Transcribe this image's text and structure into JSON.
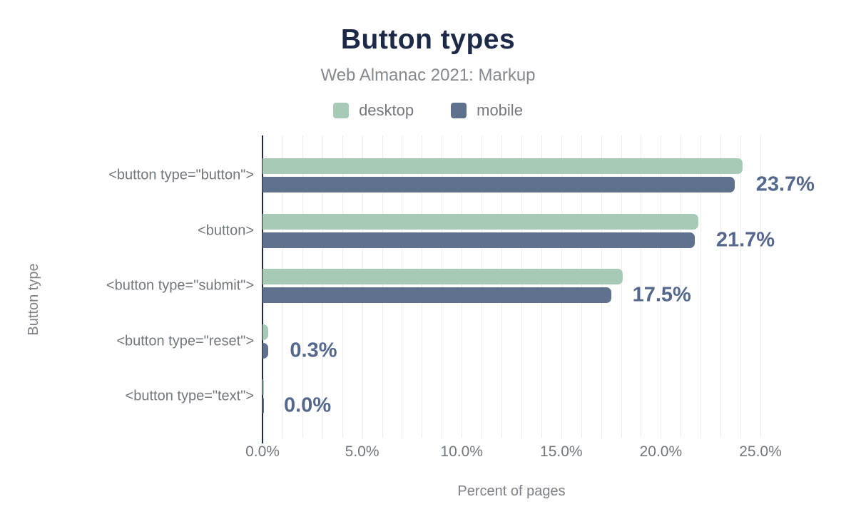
{
  "chart_data": {
    "type": "bar",
    "orientation": "horizontal",
    "title": "Button types",
    "subtitle": "Web Almanac 2021: Markup",
    "xlabel": "Percent of pages",
    "ylabel": "Button type",
    "categories": [
      "<button type=\"button\">",
      "<button>",
      "<button type=\"submit\">",
      "<button type=\"reset\">",
      "<button type=\"text\">"
    ],
    "series": [
      {
        "name": "desktop",
        "color": "#a7cab7",
        "values": [
          24.1,
          21.9,
          18.1,
          0.3,
          0.0
        ]
      },
      {
        "name": "mobile",
        "color": "#5f718c",
        "values": [
          23.7,
          21.7,
          17.5,
          0.3,
          0.0
        ]
      }
    ],
    "data_labels": [
      "23.7%",
      "21.7%",
      "17.5%",
      "0.3%",
      "0.0%"
    ],
    "x_ticks": [
      "0.0%",
      "5.0%",
      "10.0%",
      "15.0%",
      "20.0%",
      "25.0%"
    ],
    "xlim": [
      0,
      25
    ],
    "grid": "vertical minor gridlines every 1%",
    "legend_position": "top"
  },
  "colors": {
    "title_navy": "#1c2a47",
    "axis_line": "#1c2a47",
    "desktop_green": "#a7cab7",
    "mobile_slate": "#5f718c",
    "data_label_slate": "#54678c",
    "muted_text_gray": "#74787d",
    "gridline_gray": "#ececec",
    "background": "#ffffff"
  }
}
